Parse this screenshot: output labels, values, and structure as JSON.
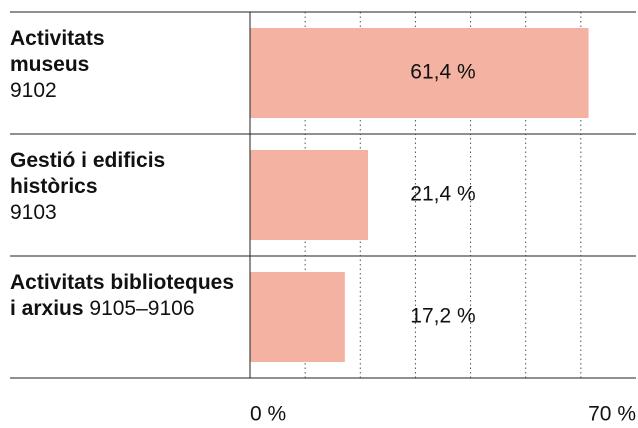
{
  "chart_data": {
    "type": "barh",
    "categories": [
      "Activitats museus",
      "Gestió i edificis històrics",
      "Activitats biblioteques i arxius"
    ],
    "codes": [
      "9102",
      "9103",
      "9105–9106"
    ],
    "values": [
      61.4,
      21.4,
      17.2
    ],
    "value_labels": [
      "61,4 %",
      "21,4 %",
      "17,2 %"
    ],
    "color": "#f4b3a2",
    "xlim": [
      0,
      70
    ],
    "xticks": [
      {
        "value": 0,
        "label": "0 %"
      },
      {
        "value": 70,
        "label": "70 %"
      }
    ],
    "xminor": [
      10,
      20,
      30,
      40,
      50,
      60
    ],
    "grid": true
  }
}
